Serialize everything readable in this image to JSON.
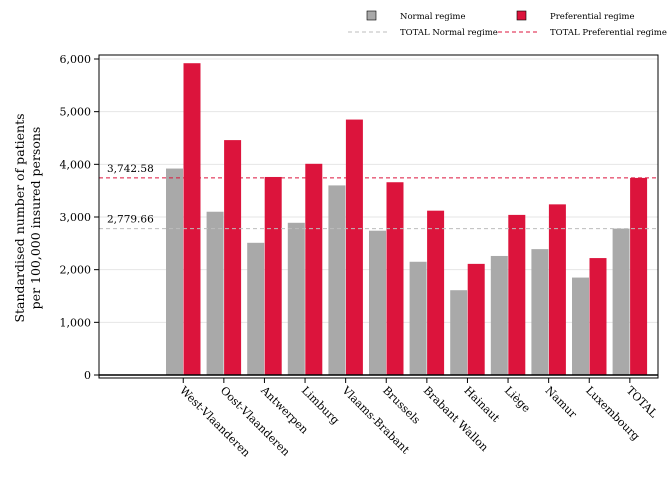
{
  "chart_data": {
    "type": "bar",
    "categories": [
      "West-Vlaanderen",
      "Oost-Vlaanderen",
      "Antwerpen",
      "Limburg",
      "Vlaams-Brabant",
      "Brussels",
      "Brabant Wallon",
      "Hainaut",
      "Liège",
      "Namur",
      "Luxembourg",
      "TOTAL"
    ],
    "series": [
      {
        "name": "Normal regime",
        "color": "#a9a9a9",
        "values": [
          3920,
          3100,
          2510,
          2890,
          3600,
          2740,
          2150,
          1610,
          2260,
          2390,
          1850,
          2780
        ]
      },
      {
        "name": "Preferential regime",
        "color": "#dc143c",
        "values": [
          5920,
          4460,
          3760,
          4010,
          4850,
          3660,
          3120,
          2110,
          3040,
          3240,
          2220,
          3742
        ]
      }
    ],
    "reference_lines": [
      {
        "name": "TOTAL Normal regime",
        "value": 2779.66,
        "label": "2,779.66",
        "color": "#bdbdbd"
      },
      {
        "name": "TOTAL Preferential regime",
        "value": 3742.58,
        "label": "3,742.58",
        "color": "#dc143c"
      }
    ],
    "ylabel_lines": [
      "Standardised number of patients",
      "per 100,000 insured persons"
    ],
    "xlabel": "",
    "title": "",
    "ylim": [
      0,
      6000
    ],
    "yticks": [
      0,
      1000,
      2000,
      3000,
      4000,
      5000,
      6000
    ],
    "ytick_labels": [
      "0",
      "1,000",
      "2,000",
      "3,000",
      "4,000",
      "5,000",
      "6,000"
    ],
    "grid": true,
    "legend_position": "top"
  }
}
